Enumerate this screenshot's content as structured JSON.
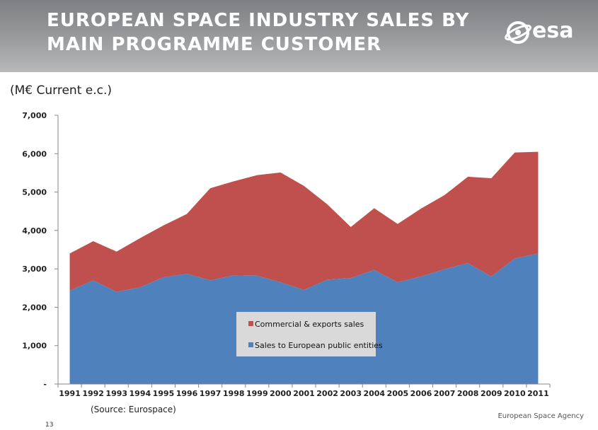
{
  "header": {
    "title": "EUROPEAN SPACE INDUSTRY SALES BY MAIN PROGRAMME CUSTOMER",
    "logo_text": "esa"
  },
  "unit_label": "(M€ Current e.c.)",
  "source": "(Source: Eurospace)",
  "footer": "European Space Agency",
  "page_number": "13",
  "colors": {
    "commercial": "#c0504d",
    "public": "#4f81bd",
    "legend_bg": "#d9d9d9"
  },
  "chart_data": {
    "type": "area",
    "stacked": true,
    "categories": [
      "1991",
      "1992",
      "1993",
      "1994",
      "1995",
      "1996",
      "1997",
      "1998",
      "1999",
      "2000",
      "2001",
      "2002",
      "2003",
      "2004",
      "2005",
      "2006",
      "2007",
      "2008",
      "2009",
      "2010",
      "2011"
    ],
    "series": [
      {
        "name": "Sales to European public entities",
        "color": "#4f81bd",
        "values": [
          2430,
          2700,
          2400,
          2520,
          2780,
          2870,
          2700,
          2830,
          2820,
          2650,
          2450,
          2720,
          2760,
          2970,
          2650,
          2800,
          2990,
          3150,
          2800,
          3270,
          3400
        ]
      },
      {
        "name": "Commercial & exports sales",
        "color": "#c0504d",
        "values": [
          970,
          1020,
          1050,
          1280,
          1350,
          1560,
          2400,
          2450,
          2620,
          2860,
          2710,
          1960,
          1330,
          1610,
          1520,
          1770,
          1930,
          2250,
          2560,
          2760,
          2650
        ]
      }
    ],
    "yticks": [
      0,
      1000,
      2000,
      3000,
      4000,
      5000,
      6000,
      7000
    ],
    "ytick_labels": [
      "-",
      "1,000",
      "2,000",
      "3,000",
      "4,000",
      "5,000",
      "6,000",
      "7,000"
    ],
    "ylim": [
      0,
      7000
    ],
    "legend": [
      {
        "label": "Commercial & exports sales",
        "color": "#c0504d"
      },
      {
        "label": "Sales to European public entities",
        "color": "#4f81bd"
      }
    ],
    "legend_position": "center-bottom",
    "grid": false
  }
}
